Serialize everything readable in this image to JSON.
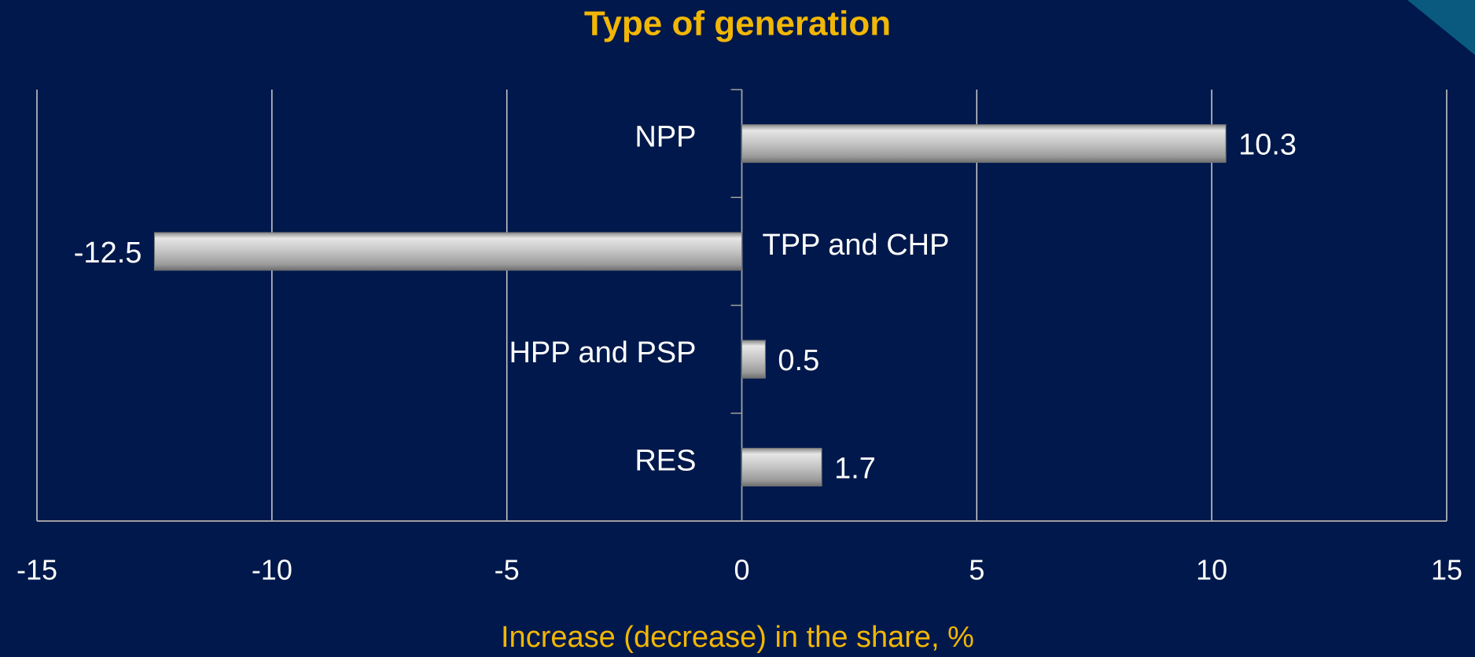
{
  "chart_data": {
    "type": "bar",
    "orientation": "horizontal",
    "title": "Type of generation",
    "x_label": "Increase (decrease) in the share, %",
    "categories": [
      "NPP",
      "TPP and CHP",
      "HPP and PSP",
      "RES"
    ],
    "values": [
      10.3,
      -12.5,
      0.5,
      1.7
    ],
    "color": "#b4b4b4",
    "xlim": [
      -15,
      15
    ],
    "xticks": [
      -15,
      -10,
      -5,
      0,
      5,
      10,
      15
    ],
    "grid": true
  }
}
